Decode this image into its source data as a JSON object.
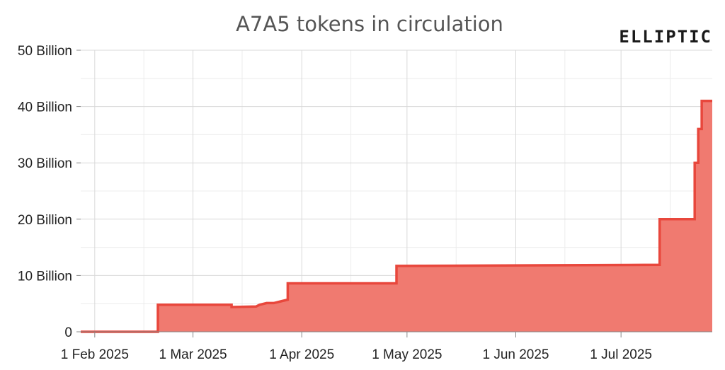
{
  "chart_data": {
    "type": "area",
    "title": "A7A5 tokens in circulation",
    "logo_text": "ELLIPTIC",
    "xlabel": "",
    "ylabel": "",
    "x_ticks": [
      "1 Feb 2025",
      "1 Mar 2025",
      "1 Apr 2025",
      "1 May 2025",
      "1 Jun 2025",
      "1 Jul 2025"
    ],
    "y_ticks": [
      "0",
      "10 Billion",
      "20 Billion",
      "30 Billion",
      "40 Billion",
      "50 Billion"
    ],
    "ylim": [
      0,
      50
    ],
    "xlim": [
      "2025-01-28",
      "2025-07-27"
    ],
    "grid": true,
    "series": [
      {
        "unit": "billion tokens",
        "points": [
          [
            "2025-01-28",
            0
          ],
          [
            "2025-02-19",
            0
          ],
          [
            "2025-02-19",
            4.8
          ],
          [
            "2025-03-12",
            4.8
          ],
          [
            "2025-03-12",
            4.4
          ],
          [
            "2025-03-19",
            4.5
          ],
          [
            "2025-03-20",
            4.8
          ],
          [
            "2025-03-22",
            5.1
          ],
          [
            "2025-03-24",
            5.1
          ],
          [
            "2025-03-26",
            5.4
          ],
          [
            "2025-03-28",
            5.7
          ],
          [
            "2025-03-28",
            8.6
          ],
          [
            "2025-04-28",
            8.6
          ],
          [
            "2025-04-28",
            11.7
          ],
          [
            "2025-07-12",
            11.9
          ],
          [
            "2025-07-12",
            20.0
          ],
          [
            "2025-07-22",
            20.0
          ],
          [
            "2025-07-22",
            30.0
          ],
          [
            "2025-07-23",
            30.0
          ],
          [
            "2025-07-23",
            36.0
          ],
          [
            "2025-07-24",
            36.0
          ],
          [
            "2025-07-24",
            41.0
          ],
          [
            "2025-07-27",
            41.0
          ]
        ]
      }
    ],
    "colors": {
      "line": "#e8473c",
      "fill": "#f07a70",
      "grid": "#d9d9d9"
    }
  }
}
